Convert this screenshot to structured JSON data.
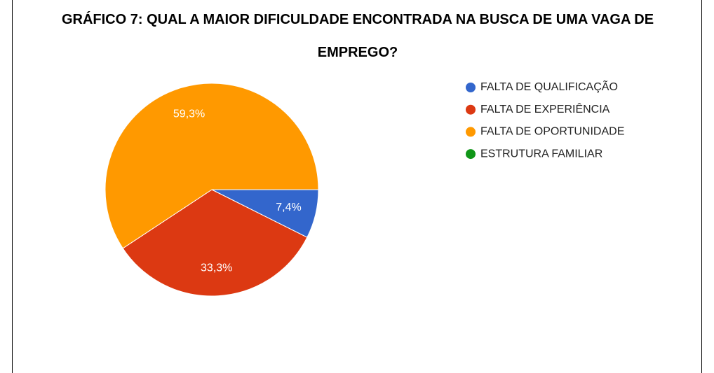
{
  "chart_data": {
    "type": "pie",
    "title": "GRÁFICO 7: QUAL A MAIOR DIFICULDADE ENCONTRADA NA BUSCA DE UMA VAGA DE EMPREGO?",
    "categories": [
      "FALTA DE QUALIFICAÇÃO",
      "FALTA DE EXPERIÊNCIA",
      "FALTA DE OPORTUNIDADE",
      "ESTRUTURA FAMILIAR"
    ],
    "values": [
      7.4,
      33.3,
      59.3,
      0
    ],
    "value_labels": [
      "7,4%",
      "33,3%",
      "59,3%",
      null
    ],
    "colors": [
      "#3366cc",
      "#dc3912",
      "#ff9900",
      "#109618"
    ],
    "legend": "right"
  }
}
